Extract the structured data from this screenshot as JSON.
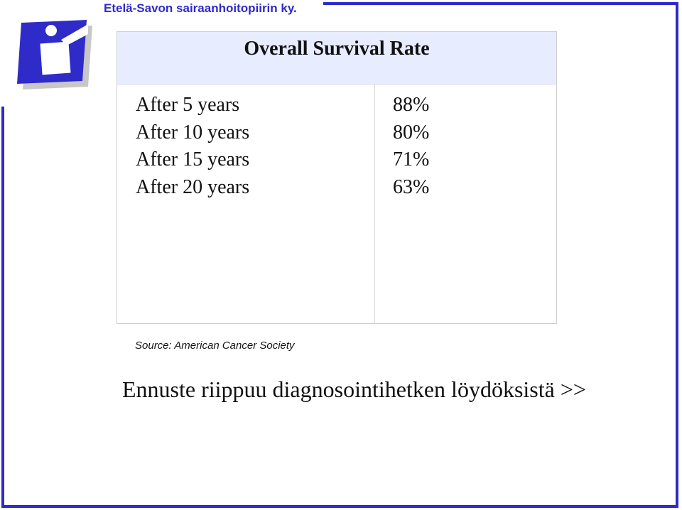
{
  "header": {
    "organization": "Etelä-Savon sairaanhoitopiirin ky."
  },
  "colors": {
    "accent": "#2e2bc9",
    "header_fill": "#e8ecff"
  },
  "logo": {
    "icon": "hospital-district-logo-icon"
  },
  "table": {
    "title": "Overall Survival Rate",
    "rows": [
      {
        "label": "After 5 years",
        "value": "88%"
      },
      {
        "label": "After 10 years",
        "value": "80%"
      },
      {
        "label": "After 15 years",
        "value": "71%"
      },
      {
        "label": "After 20 years",
        "value": "63%"
      }
    ]
  },
  "source": "Source: American Cancer Society",
  "footer": "Ennuste riippuu diagnosointihetken löydöksistä >>"
}
